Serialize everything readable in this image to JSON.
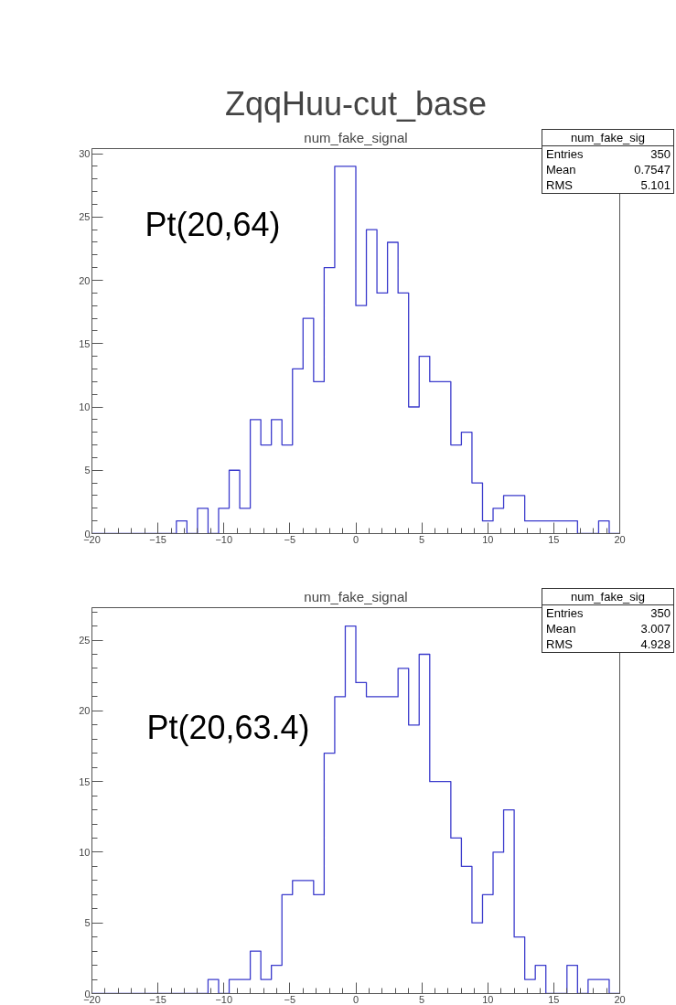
{
  "chart_data": [
    {
      "type": "histogram",
      "title": "ZqqHuu-cut_base",
      "subtitle": "num_fake_signal",
      "bins": [
        -20,
        -19.2,
        -18.4,
        -17.6,
        -16.8,
        -16,
        -15.2,
        -14.4,
        -13.6,
        -12.8,
        -12,
        -11.2,
        -10.4,
        -9.6,
        -8.8,
        -8,
        -7.2,
        -6.4,
        -5.6,
        -4.8,
        -4,
        -3.2,
        -2.4,
        -1.6,
        -0.8,
        0,
        0.8,
        1.6,
        2.4,
        3.2,
        4,
        4.8,
        5.6,
        6.4,
        7.2,
        8,
        8.8,
        9.6,
        10.4,
        11.2,
        12,
        12.8,
        13.6,
        14.4,
        15.2,
        16,
        16.8,
        17.6,
        18.4,
        19.2,
        20
      ],
      "values": [
        0,
        0,
        0,
        0,
        0,
        0,
        0,
        0,
        1,
        0,
        2,
        0,
        2,
        5,
        2,
        9,
        7,
        9,
        7,
        13,
        17,
        12,
        21,
        29,
        29,
        18,
        24,
        19,
        23,
        19,
        10,
        14,
        12,
        12,
        7,
        8,
        4,
        1,
        2,
        3,
        3,
        1,
        1,
        1,
        1,
        1,
        0,
        0,
        1,
        0
      ],
      "color": "#3b3bcc",
      "xlim": [
        -20,
        20
      ],
      "ylim": [
        0,
        30.4
      ],
      "xticks": [
        -20,
        -15,
        -10,
        -5,
        0,
        5,
        10,
        15,
        20
      ],
      "yticks": [
        0,
        5,
        10,
        15,
        20,
        25,
        30
      ],
      "grid": false,
      "annotations": [
        "Pt(20,64)",
        "num_fake_sig",
        "Entries",
        "350",
        "Mean",
        "0.7547",
        "RMS",
        "5.101"
      ]
    },
    {
      "type": "histogram",
      "title": "num_fake_signal",
      "bins": [
        -20,
        -19.2,
        -18.4,
        -17.6,
        -16.8,
        -16,
        -15.2,
        -14.4,
        -13.6,
        -12.8,
        -12,
        -11.2,
        -10.4,
        -9.6,
        -8.8,
        -8,
        -7.2,
        -6.4,
        -5.6,
        -4.8,
        -4,
        -3.2,
        -2.4,
        -1.6,
        -0.8,
        0,
        0.8,
        1.6,
        2.4,
        3.2,
        4,
        4.8,
        5.6,
        6.4,
        7.2,
        8,
        8.8,
        9.6,
        10.4,
        11.2,
        12,
        12.8,
        13.6,
        14.4,
        15.2,
        16,
        16.8,
        17.6,
        18.4,
        19.2,
        20
      ],
      "values": [
        0,
        0,
        0,
        0,
        0,
        0,
        0,
        0,
        0,
        0,
        0,
        1,
        0,
        1,
        1,
        3,
        1,
        2,
        7,
        8,
        8,
        7,
        17,
        21,
        26,
        22,
        21,
        21,
        21,
        23,
        19,
        24,
        15,
        15,
        11,
        9,
        5,
        7,
        10,
        13,
        4,
        1,
        2,
        0,
        0,
        2,
        0,
        1,
        1,
        0
      ],
      "color": "#3b3bcc",
      "xlim": [
        -20,
        20
      ],
      "ylim": [
        0,
        27.3
      ],
      "xticks": [
        -20,
        -15,
        -10,
        -5,
        0,
        5,
        10,
        15,
        20
      ],
      "yticks": [
        0,
        5,
        10,
        15,
        20,
        25
      ],
      "grid": false,
      "annotations": [
        "Pt(20,63.4)",
        "num_fake_sig",
        "Entries",
        "350",
        "Mean",
        "3.007",
        "RMS",
        "4.928"
      ]
    }
  ]
}
